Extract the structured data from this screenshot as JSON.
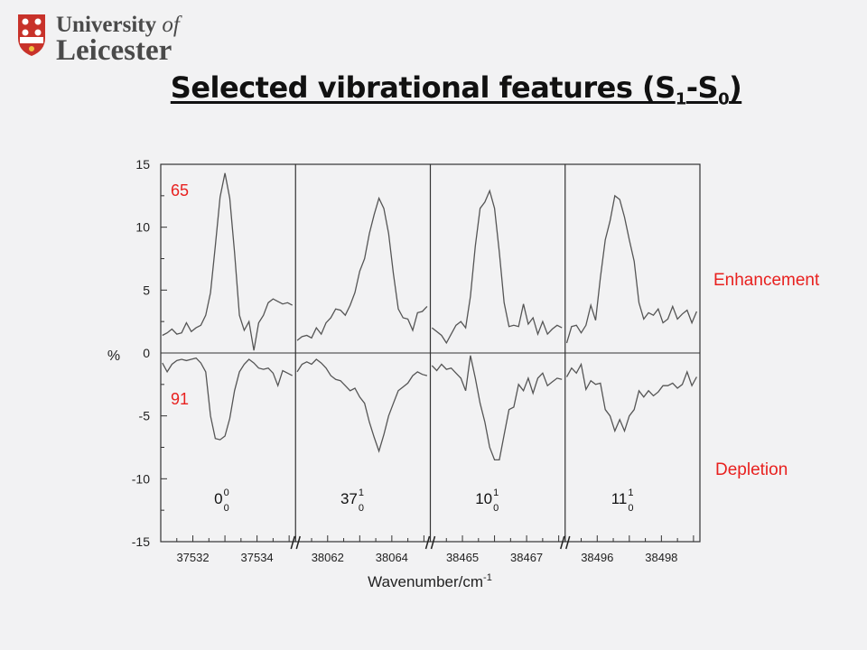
{
  "logo": {
    "line1": "University",
    "line1_of": "of",
    "line2": "Leicester",
    "crest_icon": "university-crest-icon",
    "crest_color": "#c8322a"
  },
  "slide": {
    "title_parts": [
      "Selected vibrational features (S",
      "1",
      "-S",
      "0",
      ")"
    ]
  },
  "annotations": {
    "enhancement": "Enhancement",
    "depletion": "Depletion",
    "color": "#e8211f"
  },
  "chart_data": {
    "type": "line",
    "xlabel": "Wavenumber/cm",
    "xlabel_sup": "-1",
    "ylabel": "%",
    "ylim": [
      -15,
      15
    ],
    "yticks": [
      -15,
      -10,
      -5,
      0,
      5,
      10,
      15
    ],
    "panel_labels": {
      "upper": "65",
      "lower": "91",
      "color": "#e8211f"
    },
    "line_color": "#555555",
    "panels": [
      {
        "band": {
          "base": "0",
          "sup": "0",
          "sub": "0"
        },
        "xrange": [
          37531.0,
          37535.2
        ],
        "xticks": [
          37532,
          37534
        ],
        "enhancement": [
          [
            37531.05,
            1.4
          ],
          [
            37531.2,
            1.6
          ],
          [
            37531.35,
            1.9
          ],
          [
            37531.5,
            1.5
          ],
          [
            37531.65,
            1.6
          ],
          [
            37531.8,
            2.4
          ],
          [
            37531.95,
            1.7
          ],
          [
            37532.1,
            2.0
          ],
          [
            37532.25,
            2.2
          ],
          [
            37532.4,
            3.0
          ],
          [
            37532.55,
            4.8
          ],
          [
            37532.7,
            8.5
          ],
          [
            37532.85,
            12.4
          ],
          [
            37533.0,
            14.3
          ],
          [
            37533.15,
            12.3
          ],
          [
            37533.3,
            8.0
          ],
          [
            37533.45,
            3.0
          ],
          [
            37533.6,
            1.8
          ],
          [
            37533.75,
            2.5
          ],
          [
            37533.9,
            0.2
          ],
          [
            37534.05,
            2.4
          ],
          [
            37534.2,
            3.0
          ],
          [
            37534.35,
            4.0
          ],
          [
            37534.5,
            4.3
          ],
          [
            37534.65,
            4.1
          ],
          [
            37534.8,
            3.9
          ],
          [
            37534.95,
            4.0
          ],
          [
            37535.1,
            3.8
          ]
        ],
        "depletion": [
          [
            37531.05,
            -0.8
          ],
          [
            37531.2,
            -1.5
          ],
          [
            37531.35,
            -0.9
          ],
          [
            37531.5,
            -0.6
          ],
          [
            37531.65,
            -0.5
          ],
          [
            37531.8,
            -0.6
          ],
          [
            37531.95,
            -0.5
          ],
          [
            37532.1,
            -0.4
          ],
          [
            37532.25,
            -0.8
          ],
          [
            37532.4,
            -1.5
          ],
          [
            37532.55,
            -5.0
          ],
          [
            37532.7,
            -6.8
          ],
          [
            37532.85,
            -6.9
          ],
          [
            37533.0,
            -6.6
          ],
          [
            37533.15,
            -5.2
          ],
          [
            37533.3,
            -3.0
          ],
          [
            37533.45,
            -1.5
          ],
          [
            37533.6,
            -0.9
          ],
          [
            37533.75,
            -0.5
          ],
          [
            37533.9,
            -0.8
          ],
          [
            37534.05,
            -1.2
          ],
          [
            37534.2,
            -1.3
          ],
          [
            37534.35,
            -1.2
          ],
          [
            37534.5,
            -1.6
          ],
          [
            37534.65,
            -2.6
          ],
          [
            37534.8,
            -1.4
          ],
          [
            37534.95,
            -1.6
          ],
          [
            37535.1,
            -1.8
          ]
        ]
      },
      {
        "band": {
          "base": "37",
          "sup": "1",
          "sub": "0"
        },
        "xrange": [
          38061.0,
          38065.2
        ],
        "xticks": [
          38062,
          38064
        ],
        "enhancement": [
          [
            38061.05,
            1.0
          ],
          [
            38061.2,
            1.3
          ],
          [
            38061.35,
            1.4
          ],
          [
            38061.5,
            1.2
          ],
          [
            38061.65,
            2.0
          ],
          [
            38061.8,
            1.5
          ],
          [
            38061.95,
            2.4
          ],
          [
            38062.1,
            2.8
          ],
          [
            38062.25,
            3.5
          ],
          [
            38062.4,
            3.4
          ],
          [
            38062.55,
            3.0
          ],
          [
            38062.7,
            3.8
          ],
          [
            38062.85,
            4.8
          ],
          [
            38063.0,
            6.5
          ],
          [
            38063.15,
            7.5
          ],
          [
            38063.3,
            9.5
          ],
          [
            38063.45,
            11.0
          ],
          [
            38063.6,
            12.3
          ],
          [
            38063.75,
            11.5
          ],
          [
            38063.9,
            9.5
          ],
          [
            38064.05,
            6.3
          ],
          [
            38064.2,
            3.5
          ],
          [
            38064.35,
            2.8
          ],
          [
            38064.5,
            2.7
          ],
          [
            38064.65,
            1.8
          ],
          [
            38064.8,
            3.2
          ],
          [
            38064.95,
            3.3
          ],
          [
            38065.1,
            3.7
          ]
        ],
        "depletion": [
          [
            38061.05,
            -1.5
          ],
          [
            38061.2,
            -0.9
          ],
          [
            38061.35,
            -0.7
          ],
          [
            38061.5,
            -0.9
          ],
          [
            38061.65,
            -0.5
          ],
          [
            38061.8,
            -0.8
          ],
          [
            38061.95,
            -1.2
          ],
          [
            38062.1,
            -1.8
          ],
          [
            38062.25,
            -2.1
          ],
          [
            38062.4,
            -2.2
          ],
          [
            38062.55,
            -2.6
          ],
          [
            38062.7,
            -3.0
          ],
          [
            38062.85,
            -2.8
          ],
          [
            38063.0,
            -3.5
          ],
          [
            38063.15,
            -4.0
          ],
          [
            38063.3,
            -5.5
          ],
          [
            38063.45,
            -6.7
          ],
          [
            38063.6,
            -7.8
          ],
          [
            38063.75,
            -6.5
          ],
          [
            38063.9,
            -5.0
          ],
          [
            38064.05,
            -4.0
          ],
          [
            38064.2,
            -3.0
          ],
          [
            38064.35,
            -2.7
          ],
          [
            38064.5,
            -2.4
          ],
          [
            38064.65,
            -1.8
          ],
          [
            38064.8,
            -1.5
          ],
          [
            38064.95,
            -1.7
          ],
          [
            38065.1,
            -1.8
          ]
        ]
      },
      {
        "band": {
          "base": "10",
          "sup": "1",
          "sub": "0"
        },
        "xrange": [
          38464.0,
          38468.2
        ],
        "xticks": [
          38465,
          38467
        ],
        "enhancement": [
          [
            38464.05,
            2.0
          ],
          [
            38464.2,
            1.7
          ],
          [
            38464.35,
            1.4
          ],
          [
            38464.5,
            0.8
          ],
          [
            38464.65,
            1.5
          ],
          [
            38464.8,
            2.2
          ],
          [
            38464.95,
            2.5
          ],
          [
            38465.1,
            2.0
          ],
          [
            38465.25,
            4.5
          ],
          [
            38465.4,
            8.5
          ],
          [
            38465.55,
            11.5
          ],
          [
            38465.7,
            12.0
          ],
          [
            38465.85,
            12.9
          ],
          [
            38466.0,
            11.5
          ],
          [
            38466.15,
            8.0
          ],
          [
            38466.3,
            4.0
          ],
          [
            38466.45,
            2.1
          ],
          [
            38466.6,
            2.2
          ],
          [
            38466.75,
            2.1
          ],
          [
            38466.9,
            3.9
          ],
          [
            38467.05,
            2.3
          ],
          [
            38467.2,
            2.8
          ],
          [
            38467.35,
            1.5
          ],
          [
            38467.5,
            2.5
          ],
          [
            38467.65,
            1.5
          ],
          [
            38467.8,
            1.9
          ],
          [
            38467.95,
            2.2
          ],
          [
            38468.1,
            2.0
          ]
        ],
        "depletion": [
          [
            38464.05,
            -1.0
          ],
          [
            38464.2,
            -1.4
          ],
          [
            38464.35,
            -0.9
          ],
          [
            38464.5,
            -1.3
          ],
          [
            38464.65,
            -1.2
          ],
          [
            38464.8,
            -1.6
          ],
          [
            38464.95,
            -2.0
          ],
          [
            38465.1,
            -3.0
          ],
          [
            38465.25,
            -0.2
          ],
          [
            38465.4,
            -2.0
          ],
          [
            38465.55,
            -4.0
          ],
          [
            38465.7,
            -5.5
          ],
          [
            38465.85,
            -7.5
          ],
          [
            38466.0,
            -8.5
          ],
          [
            38466.15,
            -8.5
          ],
          [
            38466.3,
            -6.5
          ],
          [
            38466.45,
            -4.5
          ],
          [
            38466.6,
            -4.3
          ],
          [
            38466.75,
            -2.5
          ],
          [
            38466.9,
            -3.0
          ],
          [
            38467.05,
            -2.0
          ],
          [
            38467.2,
            -3.2
          ],
          [
            38467.35,
            -2.0
          ],
          [
            38467.5,
            -1.6
          ],
          [
            38467.65,
            -2.6
          ],
          [
            38467.8,
            -2.3
          ],
          [
            38467.95,
            -2.0
          ],
          [
            38468.1,
            -2.1
          ]
        ]
      },
      {
        "band": {
          "base": "11",
          "sup": "1",
          "sub": "0"
        },
        "xrange": [
          38495.0,
          38499.2
        ],
        "xticks": [
          38496,
          38498
        ],
        "enhancement": [
          [
            38495.05,
            0.8
          ],
          [
            38495.2,
            2.1
          ],
          [
            38495.35,
            2.2
          ],
          [
            38495.5,
            1.6
          ],
          [
            38495.65,
            2.2
          ],
          [
            38495.8,
            3.8
          ],
          [
            38495.95,
            2.6
          ],
          [
            38496.1,
            6.0
          ],
          [
            38496.25,
            9.0
          ],
          [
            38496.4,
            10.5
          ],
          [
            38496.55,
            12.5
          ],
          [
            38496.7,
            12.2
          ],
          [
            38496.85,
            10.8
          ],
          [
            38497.0,
            9.0
          ],
          [
            38497.15,
            7.3
          ],
          [
            38497.3,
            4.0
          ],
          [
            38497.45,
            2.7
          ],
          [
            38497.6,
            3.2
          ],
          [
            38497.75,
            3.0
          ],
          [
            38497.9,
            3.5
          ],
          [
            38498.05,
            2.4
          ],
          [
            38498.2,
            2.7
          ],
          [
            38498.35,
            3.7
          ],
          [
            38498.5,
            2.7
          ],
          [
            38498.65,
            3.1
          ],
          [
            38498.8,
            3.4
          ],
          [
            38498.95,
            2.4
          ],
          [
            38499.1,
            3.3
          ]
        ],
        "depletion": [
          [
            38495.05,
            -1.9
          ],
          [
            38495.2,
            -1.2
          ],
          [
            38495.35,
            -1.6
          ],
          [
            38495.5,
            -0.9
          ],
          [
            38495.65,
            -2.9
          ],
          [
            38495.8,
            -2.2
          ],
          [
            38495.95,
            -2.5
          ],
          [
            38496.1,
            -2.4
          ],
          [
            38496.25,
            -4.5
          ],
          [
            38496.4,
            -5.0
          ],
          [
            38496.55,
            -6.2
          ],
          [
            38496.7,
            -5.3
          ],
          [
            38496.85,
            -6.2
          ],
          [
            38497.0,
            -5.0
          ],
          [
            38497.15,
            -4.5
          ],
          [
            38497.3,
            -3.0
          ],
          [
            38497.45,
            -3.5
          ],
          [
            38497.6,
            -3.0
          ],
          [
            38497.75,
            -3.4
          ],
          [
            38497.9,
            -3.1
          ],
          [
            38498.05,
            -2.6
          ],
          [
            38498.2,
            -2.6
          ],
          [
            38498.35,
            -2.4
          ],
          [
            38498.5,
            -2.8
          ],
          [
            38498.65,
            -2.5
          ],
          [
            38498.8,
            -1.5
          ],
          [
            38498.95,
            -2.6
          ],
          [
            38499.1,
            -1.9
          ]
        ]
      }
    ]
  }
}
